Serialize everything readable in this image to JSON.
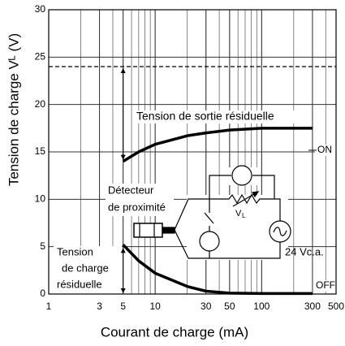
{
  "chart_data": {
    "type": "line",
    "x_label": "Courant de charge (mA)",
    "y_label": "Tension de charge Vᴸ (V)",
    "xlim": [
      1,
      500
    ],
    "xticks": [
      1,
      3,
      5,
      10,
      30,
      50,
      100,
      300,
      500
    ],
    "x_log": true,
    "ylim": [
      0,
      30
    ],
    "yticks": [
      0,
      5,
      10,
      15,
      20,
      25,
      30
    ],
    "grid": true,
    "hlines": [
      {
        "value": 24,
        "style": "dashed"
      }
    ],
    "series": [
      {
        "name": "ON",
        "color": "#000000",
        "x": [
          5,
          7,
          10,
          20,
          30,
          50,
          100,
          200,
          300
        ],
        "values": [
          14,
          15,
          15.8,
          16.7,
          17,
          17.3,
          17.5,
          17.5,
          17.5
        ]
      },
      {
        "name": "OFF",
        "color": "#000000",
        "x": [
          5,
          7,
          10,
          20,
          30,
          50,
          100,
          200,
          300
        ],
        "values": [
          5.2,
          3.5,
          2.2,
          0.8,
          0.3,
          0.1,
          0.05,
          0.05,
          0.05
        ]
      }
    ],
    "annotations": [
      "Tension de sortie résiduelle",
      "Tension",
      "de charge",
      "résiduelle",
      "Détecteur",
      "de proximité",
      "24 Vc.a.",
      "V",
      "A",
      "V",
      "L"
    ]
  }
}
